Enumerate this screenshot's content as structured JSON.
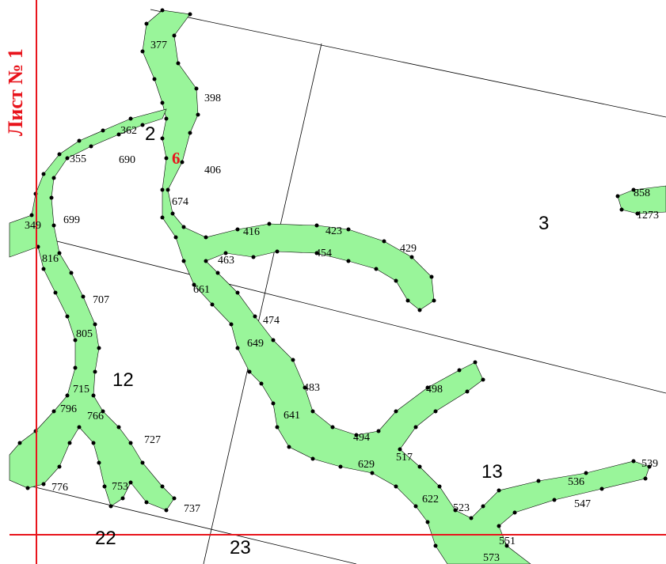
{
  "sheet_label": "Лист № 1",
  "plot_number": "6",
  "zone_numbers": [
    "2",
    "3",
    "12",
    "13",
    "22",
    "23"
  ],
  "point_labels": [
    "377",
    "398",
    "362",
    "355",
    "690",
    "406",
    "674",
    "699",
    "349",
    "416",
    "423",
    "429",
    "454",
    "463",
    "816",
    "661",
    "707",
    "474",
    "805",
    "649",
    "483",
    "498",
    "715",
    "641",
    "796",
    "766",
    "727",
    "494",
    "517",
    "629",
    "539",
    "536",
    "776",
    "753",
    "737",
    "622",
    "523",
    "547",
    "551",
    "573",
    "858",
    "1273"
  ],
  "colors": {
    "parcel_fill": "#99f59a",
    "border_line": "#e8141c",
    "vertex": "#000000",
    "grid_line": "#000000"
  }
}
